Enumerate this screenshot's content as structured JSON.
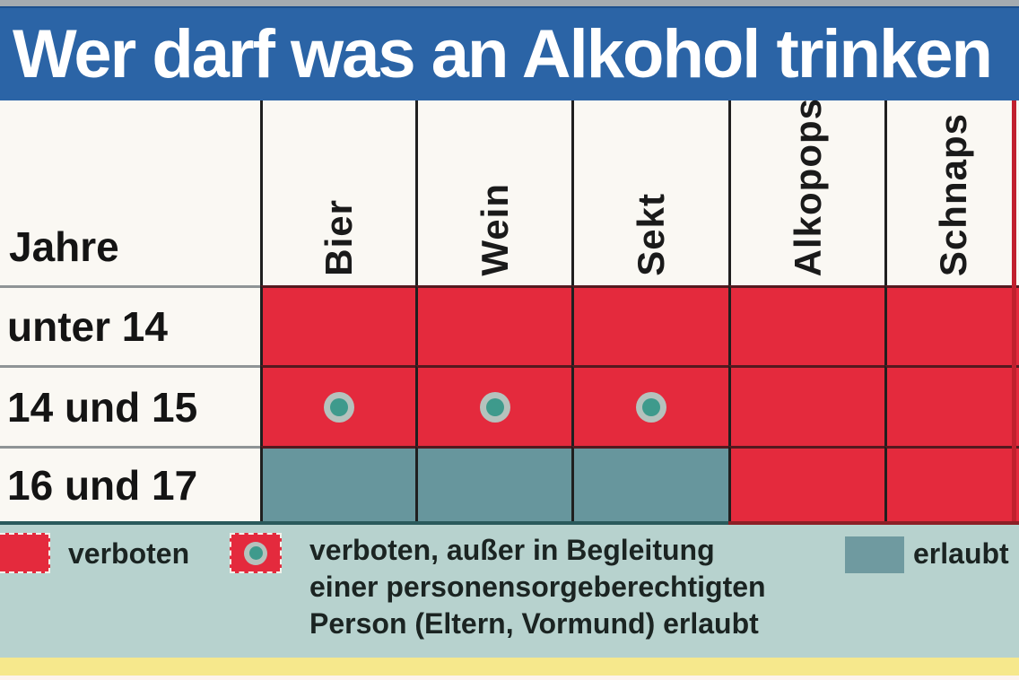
{
  "title": "Wer darf was an Alkohol trinken",
  "table": {
    "corner_label": "Jahre",
    "columns": [
      "Bier",
      "Wein",
      "Sekt",
      "Alkopops",
      "Schnaps"
    ],
    "rows": [
      {
        "label": "unter 14",
        "cells": [
          "verboten",
          "verboten",
          "verboten",
          "verboten",
          "verboten"
        ]
      },
      {
        "label": "14 und 15",
        "cells": [
          "begleitung",
          "begleitung",
          "begleitung",
          "verboten",
          "verboten"
        ]
      },
      {
        "label": "16 und 17",
        "cells": [
          "erlaubt",
          "erlaubt",
          "erlaubt",
          "verboten",
          "verboten"
        ]
      }
    ]
  },
  "legend": {
    "verboten_label": "verboten",
    "begleitung_label": "verboten, außer in Begleitung\neiner personensorgeberechtigten\nPerson (Eltern, Vormund) erlaubt",
    "erlaubt_label": "erlaubt"
  },
  "chart_data": {
    "type": "table",
    "title": "Wer darf was an Alkohol trinken",
    "row_header": "Jahre",
    "columns": [
      "Bier",
      "Wein",
      "Sekt",
      "Alkopops",
      "Schnaps"
    ],
    "rows": [
      "unter 14",
      "14 und 15",
      "16 und 17"
    ],
    "values": [
      [
        "verboten",
        "verboten",
        "verboten",
        "verboten",
        "verboten"
      ],
      [
        "verboten, außer in Begleitung einer personensorgeberechtigten Person (Eltern, Vormund) erlaubt",
        "verboten, außer in Begleitung einer personensorgeberechtigten Person (Eltern, Vormund) erlaubt",
        "verboten, außer in Begleitung einer personensorgeberechtigten Person (Eltern, Vormund) erlaubt",
        "verboten",
        "verboten"
      ],
      [
        "erlaubt",
        "erlaubt",
        "erlaubt",
        "verboten",
        "verboten"
      ]
    ],
    "legend": [
      "verboten",
      "verboten, außer in Begleitung einer personensorgeberechtigten Person (Eltern, Vormund) erlaubt",
      "erlaubt"
    ]
  },
  "colors": {
    "banner_blue": "#2b64a6",
    "forbidden_red": "#e42a3d",
    "allowed_teal": "#67969d",
    "legend_bg": "#b7d2ce",
    "dot_inner_teal": "#3e9a8c",
    "dot_ring_gray": "#b5c2bd",
    "yellow_strip": "#f6e88c",
    "top_strip_gray": "#a4abb0"
  }
}
